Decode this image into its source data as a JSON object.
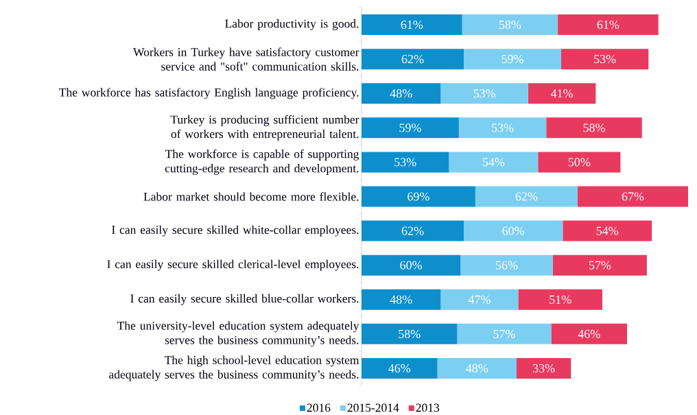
{
  "chart_data": {
    "type": "bar",
    "orientation": "horizontal",
    "stacked": true,
    "legend": "bottom",
    "categories": [
      "Labor productivity is good.",
      "Workers in Turkey have satisfactory customer service and \"soft\" communication skills.",
      "The workforce has satisfactory  English language proficiency.",
      "Turkey is producing sufficient number of workers with entrepreneurial talent.",
      "The workforce is capable of supporting cutting-edge research and development.",
      "Labor market should become more flexible.",
      "I can easily secure skilled white-collar employees.",
      "I can easily secure skilled clerical-level employees.",
      "I can easily secure skilled blue-collar workers.",
      "The university-level education system adequately serves the business community’s needs.",
      "The high school-level education system adequately serves the business community’s needs."
    ],
    "series": [
      {
        "name": "2016",
        "color": "#0e8fcc",
        "values": [
          61,
          62,
          48,
          59,
          53,
          69,
          62,
          60,
          48,
          58,
          46
        ],
        "value_labels": [
          "61%",
          "62%",
          "48%",
          "59%",
          "53%",
          "69%",
          "62%",
          "60%",
          "48%",
          "58%",
          "46%"
        ]
      },
      {
        "name": "2015-2014",
        "color": "#7dcff2",
        "values": [
          58,
          59,
          53,
          53,
          54,
          62,
          60,
          56,
          47,
          57,
          48
        ],
        "value_labels": [
          "58%",
          "59%",
          "53%",
          "53%",
          "54%",
          "62%",
          "60%",
          "56%",
          "47%",
          "57%",
          "48%"
        ]
      },
      {
        "name": "2013",
        "color": "#e83a5f",
        "values": [
          61,
          53,
          41,
          58,
          50,
          67,
          54,
          57,
          51,
          46,
          33
        ],
        "value_labels": [
          "61%",
          "53%",
          "41%",
          "58%",
          "50%",
          "67%",
          "54%",
          "57%",
          "51%",
          "46%",
          "33%"
        ]
      }
    ]
  }
}
